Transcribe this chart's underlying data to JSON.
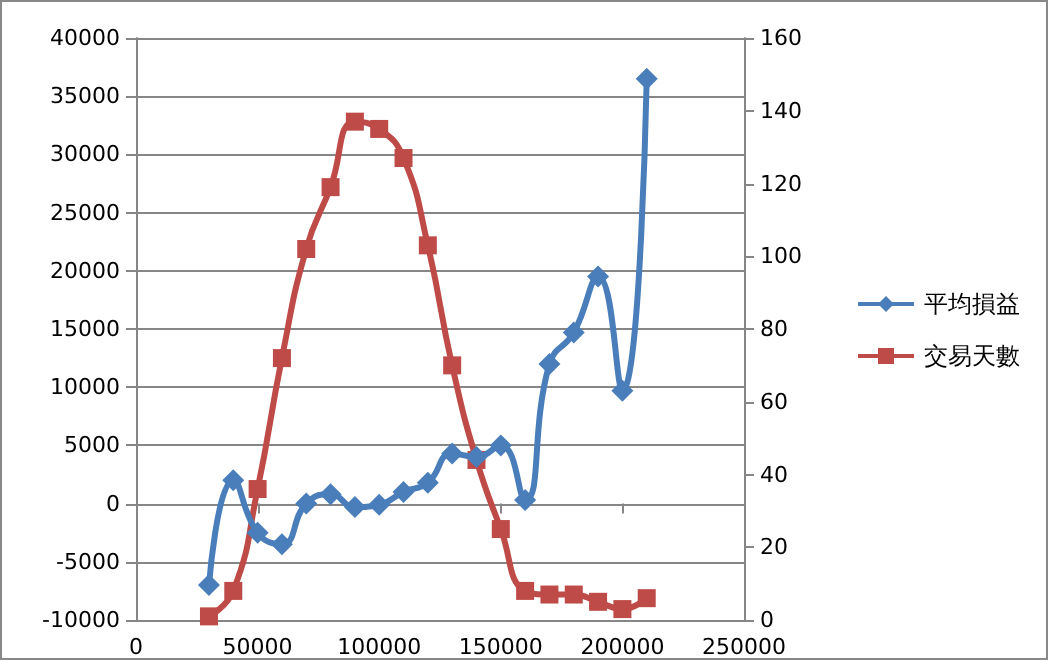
{
  "chart_data": {
    "type": "line",
    "x": [
      30000,
      40000,
      50000,
      60000,
      70000,
      80000,
      90000,
      100000,
      110000,
      120000,
      130000,
      140000,
      150000,
      160000,
      170000,
      180000,
      190000,
      200000,
      210000
    ],
    "series": [
      {
        "name": "平均損益",
        "color": "#4a7ebb",
        "marker": "diamond",
        "values": [
          -7000,
          2000,
          -2500,
          -3500,
          0,
          800,
          -300,
          -100,
          1000,
          1800,
          4300,
          4000,
          5000,
          300,
          12000,
          14700,
          19500,
          9700,
          36500
        ]
      },
      {
        "name": "交易天數",
        "color": "#be4b48",
        "marker": "square",
        "axis": "y2",
        "values": [
          1,
          8,
          36,
          72,
          102,
          119,
          137,
          135,
          127,
          103,
          70,
          44,
          25,
          8,
          7,
          7,
          5,
          3,
          6
        ]
      }
    ],
    "xlim": [
      0,
      250000
    ],
    "xticks": [
      0,
      50000,
      100000,
      150000,
      200000,
      250000
    ],
    "ylim": [
      -10000,
      40000
    ],
    "yticks": [
      -10000,
      -5000,
      0,
      5000,
      10000,
      15000,
      20000,
      25000,
      30000,
      35000,
      40000
    ],
    "y2lim": [
      0,
      160
    ],
    "y2ticks": [
      0,
      20,
      40,
      60,
      80,
      100,
      120,
      140,
      160
    ],
    "grid": "y",
    "legend": "right"
  }
}
